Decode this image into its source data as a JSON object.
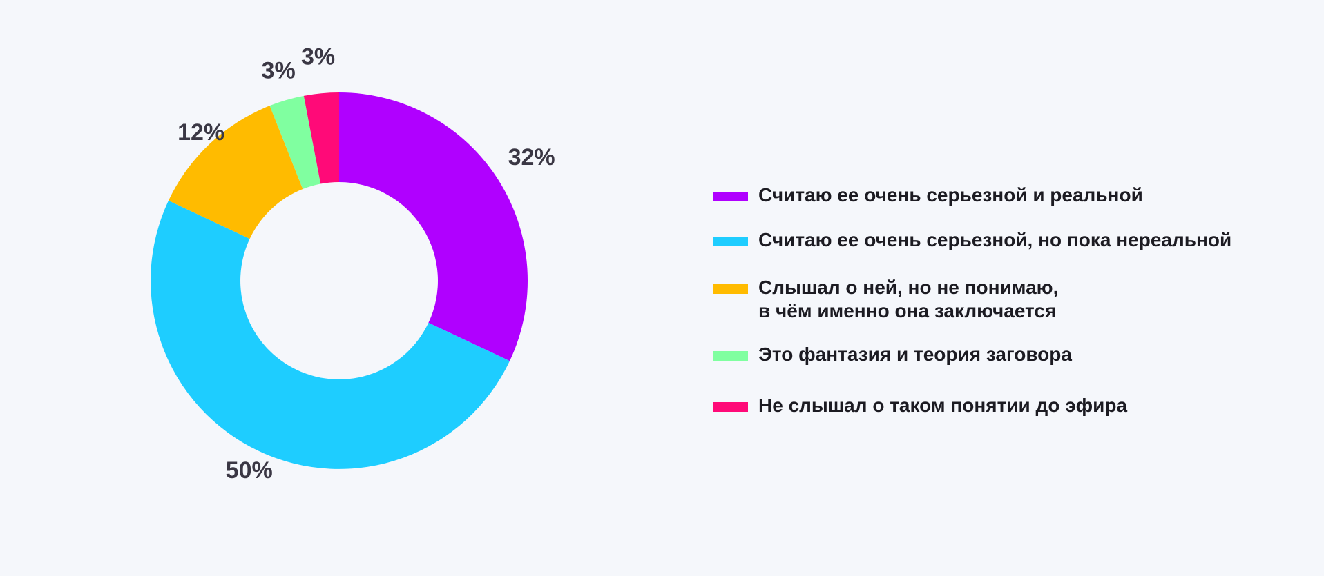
{
  "chart_data": {
    "type": "pie",
    "variant": "donut",
    "start_angle_deg": 0,
    "direction": "clockwise",
    "legend_position": "right",
    "slices": [
      {
        "label": "Считаю ее очень серьезной и реальной",
        "value": 32,
        "value_label": "32%",
        "color": "#b000ff"
      },
      {
        "label": "Считаю ее очень серьезной, но пока нереальной",
        "value": 50,
        "value_label": "50%",
        "color": "#1ecdff"
      },
      {
        "label": "Слышал о ней, но не понимаю,\nв чём именно она заключается",
        "value": 12,
        "value_label": "12%",
        "color": "#ffbb00"
      },
      {
        "label": "Это фантазия и теория заговора",
        "value": 3,
        "value_label": "3%",
        "color": "#80ffa0"
      },
      {
        "label": "Не слышал о таком понятии до эфира",
        "value": 3,
        "value_label": "3%",
        "color": "#ff0a78"
      }
    ]
  }
}
